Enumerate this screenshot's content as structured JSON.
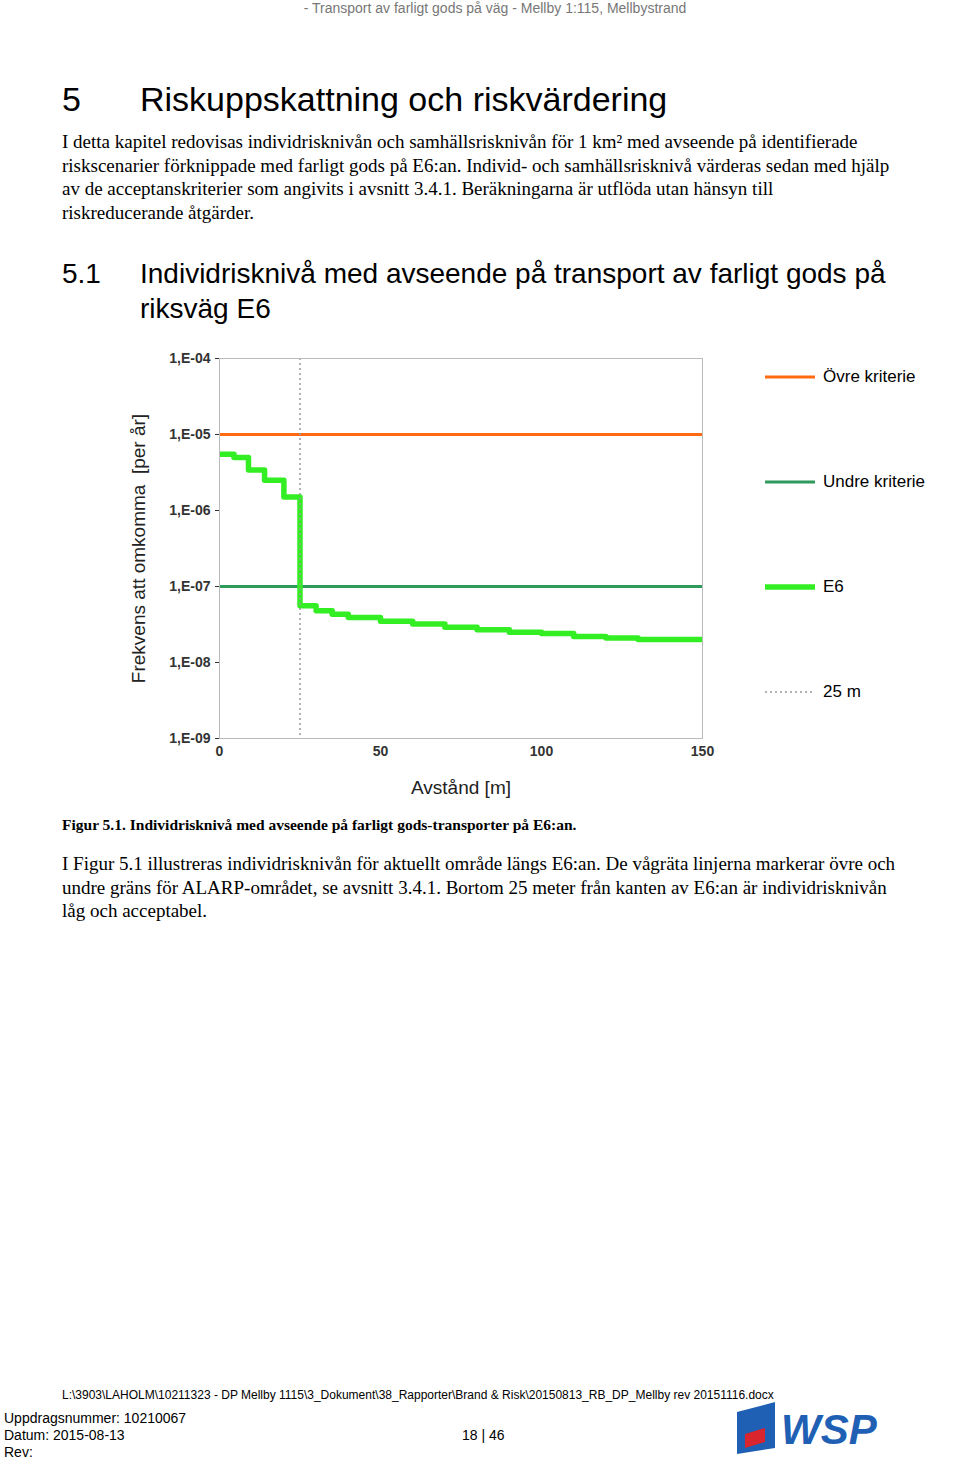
{
  "header": "- Transport av farligt gods på väg - Mellby 1:115, Mellbystrand",
  "section": {
    "number": "5",
    "title": "Riskuppskattning och riskvärdering"
  },
  "intro": "I detta kapitel redovisas individrisknivån och samhällsrisknivån för 1 km² med avseende på identifierade riskscenarier förknippade med farligt gods på E6:an. Individ- och samhällsrisknivå värderas sedan med hjälp av de acceptanskriterier som angivits i avsnitt 3.4.1. Beräkningarna är utflöda utan hänsyn till riskreducerande åtgärder.",
  "subsection": {
    "number": "5.1",
    "title": "Individrisknivå med avseende på transport av farligt gods på riksväg E6"
  },
  "chart_data": {
    "type": "line",
    "x_label": "Avstånd [m]",
    "y_label": "Frekvens att omkomma  [per år]",
    "xlim": [
      0,
      150
    ],
    "xticks": [
      0,
      50,
      100,
      150
    ],
    "ylim": [
      1e-09,
      0.0001
    ],
    "yticks": [
      {
        "value": 1e-09,
        "label": "1,E-09"
      },
      {
        "value": 1e-08,
        "label": "1,E-08"
      },
      {
        "value": 1e-07,
        "label": "1,E-07"
      },
      {
        "value": 1e-06,
        "label": "1,E-06"
      },
      {
        "value": 1e-05,
        "label": "1,E-05"
      },
      {
        "value": 0.0001,
        "label": "1,E-04"
      }
    ],
    "log": "y",
    "grid": false,
    "legend": "right",
    "series": [
      {
        "name": "Övre kriterie",
        "color": "#ff6a13",
        "line_style": "solid",
        "x": [
          0,
          150
        ],
        "values": [
          1e-05,
          1e-05
        ]
      },
      {
        "name": "Undre kriterie",
        "color": "#2e9a5c",
        "line_style": "solid",
        "x": [
          0,
          150
        ],
        "values": [
          1e-07,
          1e-07
        ]
      },
      {
        "name": "E6",
        "color": "#33ee22",
        "line_style": "step",
        "x": [
          0,
          4.5,
          9,
          14,
          20,
          25,
          30,
          35,
          40,
          50,
          60,
          70,
          80,
          90,
          100,
          110,
          120,
          130,
          140,
          150
        ],
        "values": [
          5.5e-06,
          5e-06,
          3.4e-06,
          2.5e-06,
          1.5e-06,
          5.6e-08,
          4.8e-08,
          4.3e-08,
          3.9e-08,
          3.5e-08,
          3.2e-08,
          2.9e-08,
          2.7e-08,
          2.5e-08,
          2.4e-08,
          2.2e-08,
          2.1e-08,
          2e-08,
          2e-08,
          2e-08
        ]
      },
      {
        "name": "25 m",
        "type": "vertical_line",
        "color": "#999999",
        "line_style": "dotted",
        "x": [
          25
        ]
      }
    ]
  },
  "caption": "Figur 5.1. Individrisknivå med avseende på farligt gods-transporter på E6:an.",
  "body": "I Figur 5.1 illustreras individrisknivån för aktuellt område längs E6:an. De vågräta linjerna markerar övre och undre gräns för ALARP-området, se avsnitt 3.4.1. Bortom 25 meter från kanten av E6:an är individrisknivån låg och acceptabel.",
  "footer": {
    "path": "L:\\3903\\LAHOLM\\10211323 - DP Mellby 1115\\3_Dokument\\38_Rapporter\\Brand & Risk\\20150813_RB_DP_Mellby rev 20151116.docx",
    "lines": [
      "Uppdragsnummer: 10210067",
      "Datum:  2015-08-13",
      "Rev:"
    ],
    "page": "18 | 46",
    "logo": "WSP"
  }
}
